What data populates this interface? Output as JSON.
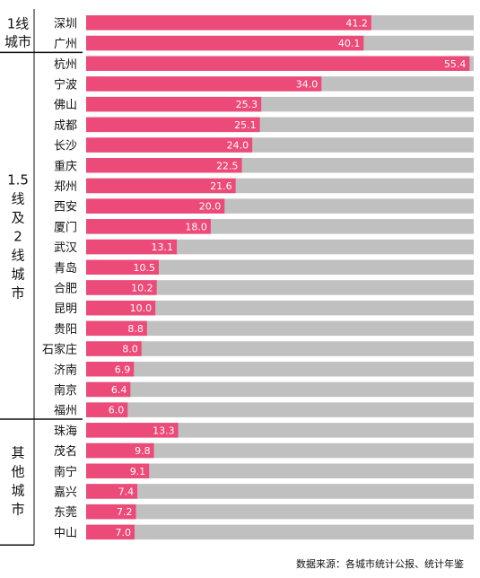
{
  "chart_data": {
    "type": "bar",
    "orientation": "horizontal",
    "xlim": [
      0,
      56
    ],
    "bar_color": "#EC4A78",
    "track_color": "#C0C0C0",
    "groups": [
      {
        "label": "1线城市",
        "label_lines": [
          "1线",
          "城市"
        ],
        "start": 0,
        "end": 1
      },
      {
        "label": "1.5线及2线城市",
        "label_lines": [
          "1.5",
          "线",
          "及",
          "2",
          "线",
          "城",
          "市"
        ],
        "start": 2,
        "end": 19
      },
      {
        "label": "其他城市",
        "label_lines": [
          "其",
          "他",
          "城",
          "市"
        ],
        "start": 20,
        "end": 25
      }
    ],
    "categories": [
      "深圳",
      "广州",
      "杭州",
      "宁波",
      "佛山",
      "成都",
      "长沙",
      "重庆",
      "郑州",
      "西安",
      "厦门",
      "武汉",
      "青岛",
      "合肥",
      "昆明",
      "贵阳",
      "石家庄",
      "济南",
      "南京",
      "福州",
      "珠海",
      "茂名",
      "南宁",
      "嘉兴",
      "东莞",
      "中山"
    ],
    "values": [
      41.2,
      40.1,
      55.4,
      34.0,
      25.3,
      25.1,
      24.0,
      22.5,
      21.6,
      20.0,
      18.0,
      13.1,
      10.5,
      10.2,
      10.0,
      8.8,
      8.0,
      6.9,
      6.4,
      6.0,
      13.3,
      9.8,
      9.1,
      7.4,
      7.2,
      7.0
    ],
    "value_labels": [
      "41.2",
      "40.1",
      "55.4",
      "34.0",
      "25.3",
      "25.1",
      "24.0",
      "22.5",
      "21.6",
      "20.0",
      "18.0",
      "13.1",
      "10.5",
      "10.2",
      "10.0",
      "8.8",
      "8.0",
      "6.9",
      "6.4",
      "6.0",
      "13.3",
      "9.8",
      "9.1",
      "7.4",
      "7.2",
      "7.0"
    ]
  },
  "source": "数据来源：各城市统计公报、统计年鉴"
}
